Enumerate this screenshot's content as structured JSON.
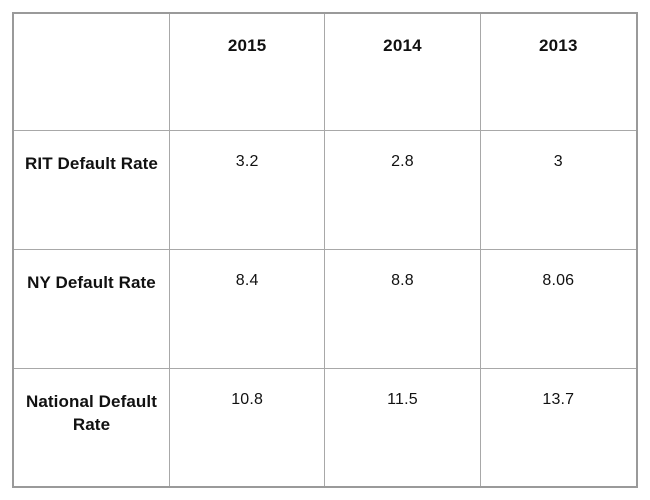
{
  "colors": {
    "background": "#ffffff",
    "grid_line": "#a8a8a8",
    "outer_border": "#9a9a9a",
    "text": "#111111"
  },
  "chart_data": {
    "type": "table",
    "title": "",
    "columns": [
      "",
      "2015",
      "2014",
      "2013"
    ],
    "rows": [
      {
        "label": "RIT Default Rate",
        "values": [
          "3.2",
          "2.8",
          "3"
        ]
      },
      {
        "label": "NY Default Rate",
        "values": [
          "8.4",
          "8.8",
          "8.06"
        ]
      },
      {
        "label": "National Default Rate",
        "values": [
          "10.8",
          "11.5",
          "13.7"
        ]
      }
    ]
  }
}
